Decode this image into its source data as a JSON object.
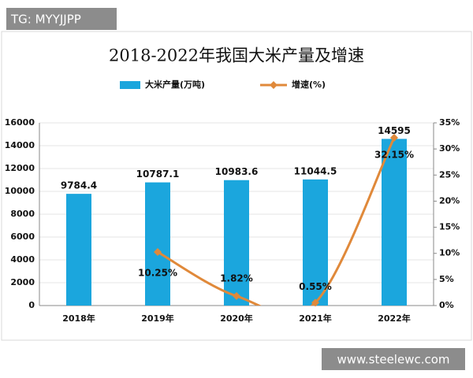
{
  "watermarks": [
    "TG: MYYJJPP",
    "www.steelewc.com"
  ],
  "chart_data": {
    "type": "bar",
    "title": "2018-2022年我国大米产量及增速",
    "categories": [
      "2018年",
      "2019年",
      "2020年",
      "2021年",
      "2022年"
    ],
    "series": [
      {
        "name": "大米产量(万吨)",
        "color": "#1ba6dd",
        "type": "bar",
        "values": [
          9784.4,
          10787.1,
          10983.6,
          11044.5,
          14595
        ]
      },
      {
        "name": "增速(%)",
        "color": "#e0893a",
        "type": "line",
        "axis": "y2",
        "values": [
          null,
          10.25,
          1.82,
          0.55,
          32.15
        ],
        "value_labels": [
          null,
          "10.25%",
          "1.82%",
          "0.55%",
          "32.15%"
        ]
      }
    ],
    "ylim": [
      0,
      16000
    ],
    "yticks": [
      0,
      2000,
      4000,
      6000,
      8000,
      10000,
      12000,
      14000,
      16000
    ],
    "y2lim": [
      0,
      35
    ],
    "y2ticks": [
      {
        "value": 0,
        "label": "0%"
      },
      {
        "value": 5,
        "label": "5%"
      },
      {
        "value": 10,
        "label": "10%"
      },
      {
        "value": 15,
        "label": "15%"
      },
      {
        "value": 20,
        "label": "20%"
      },
      {
        "value": 25,
        "label": "25%"
      },
      {
        "value": 30,
        "label": "30%"
      },
      {
        "value": 35,
        "label": "35%"
      }
    ],
    "grid": true
  }
}
